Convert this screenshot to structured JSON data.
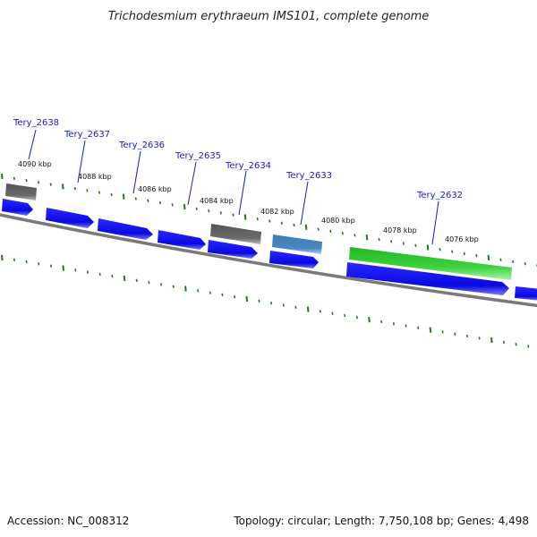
{
  "title": "Trichodesmium erythraeum IMS101, complete genome",
  "footer": {
    "accession": "Accession: NC_008312",
    "summary": "Topology: circular; Length: 7,750,108 bp; Genes: 4,498"
  },
  "colors": {
    "cds": "#0a0af0",
    "pseudo": "#707070",
    "rna": "#4a86c0",
    "highlight": "#3dd13d",
    "tick": "#1f7a1f",
    "backbone": "#7a7a7a",
    "gene_label": "#1a1acc"
  },
  "tick_labels": [
    "4090 kbp",
    "4088 kbp",
    "4086 kbp",
    "4084 kbp",
    "4082 kbp",
    "4080 kbp",
    "4078 kbp",
    "4076 kbp"
  ],
  "gene_labels": [
    "Tery_2638",
    "Tery_2637",
    "Tery_2636",
    "Tery_2635",
    "Tery_2634",
    "Tery_2633",
    "Tery_2632"
  ]
}
